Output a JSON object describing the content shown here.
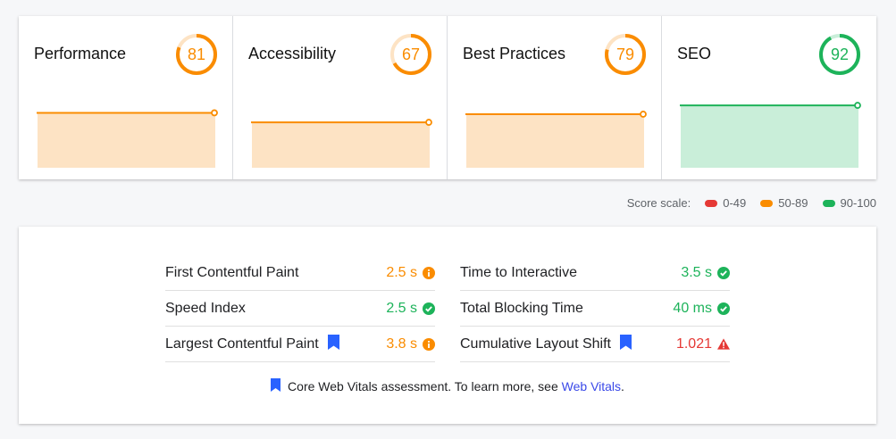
{
  "colors": {
    "fail": "#e53935",
    "average": "#fa8c00",
    "pass": "#1db35a",
    "average_fill": "#fde3c4",
    "pass_fill": "#c9eed9",
    "link": "#3a49e8",
    "bookmark": "#2962ff"
  },
  "categories": [
    {
      "title": "Performance",
      "score": 81,
      "status": "average"
    },
    {
      "title": "Accessibility",
      "score": 67,
      "status": "average"
    },
    {
      "title": "Best Practices",
      "score": 79,
      "status": "average"
    },
    {
      "title": "SEO",
      "score": 92,
      "status": "pass"
    }
  ],
  "score_scale": {
    "label": "Score scale:",
    "ranges": [
      {
        "label": "0-49",
        "status": "fail"
      },
      {
        "label": "50-89",
        "status": "average"
      },
      {
        "label": "90-100",
        "status": "pass"
      }
    ]
  },
  "metrics": [
    {
      "name": "First Contentful Paint",
      "value": "2.5 s",
      "status": "average",
      "icon": "info-circle-icon",
      "core_web_vital": false
    },
    {
      "name": "Time to Interactive",
      "value": "3.5 s",
      "status": "pass",
      "icon": "check-circle-icon",
      "core_web_vital": false
    },
    {
      "name": "Speed Index",
      "value": "2.5 s",
      "status": "pass",
      "icon": "check-circle-icon",
      "core_web_vital": false
    },
    {
      "name": "Total Blocking Time",
      "value": "40 ms",
      "status": "pass",
      "icon": "check-circle-icon",
      "core_web_vital": false
    },
    {
      "name": "Largest Contentful Paint",
      "value": "3.8 s",
      "status": "average",
      "icon": "info-circle-icon",
      "core_web_vital": true
    },
    {
      "name": "Cumulative Layout Shift",
      "value": "1.021",
      "status": "fail",
      "icon": "warning-triangle-icon",
      "core_web_vital": true
    }
  ],
  "footer": {
    "text": "Core Web Vitals assessment. To learn more, see ",
    "link": "Web Vitals",
    "end": "."
  }
}
